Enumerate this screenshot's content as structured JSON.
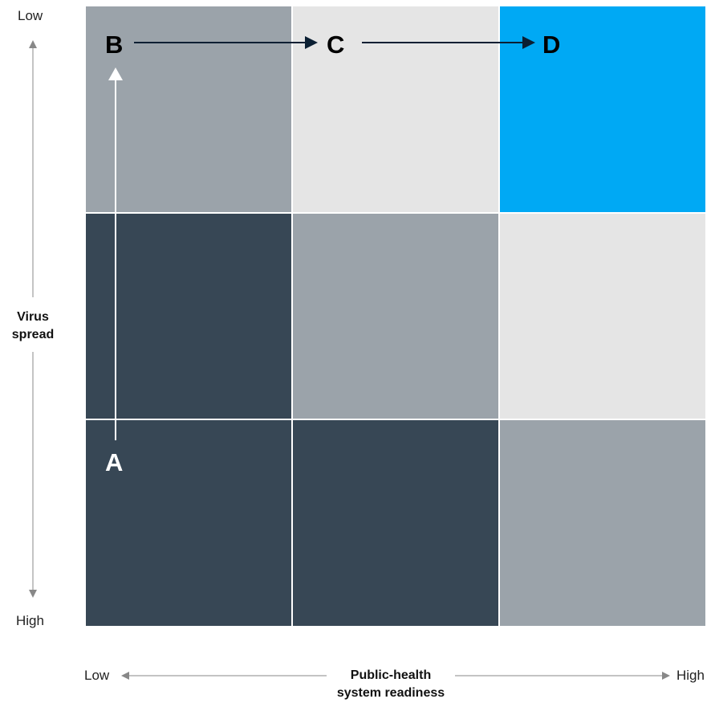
{
  "y_axis": {
    "top_label": "Low",
    "bottom_label": "High",
    "title_line1": "Virus",
    "title_line2": "spread"
  },
  "x_axis": {
    "left_label": "Low",
    "right_label": "High",
    "title_line1": "Public-health",
    "title_line2": "system readiness"
  },
  "colors": {
    "dark": "#374755",
    "mid": "#9ba3aa",
    "light": "#e5e5e5",
    "accent": "#00a9f4",
    "arrow_white": "#ffffff",
    "arrow_dark": "#0b1f33",
    "axis_gray": "#888888"
  },
  "matrix": [
    [
      "mid",
      "light",
      "accent"
    ],
    [
      "dark",
      "mid",
      "light"
    ],
    [
      "dark",
      "dark",
      "mid"
    ]
  ],
  "points": {
    "a": "A",
    "b": "B",
    "c": "C",
    "d": "D"
  }
}
